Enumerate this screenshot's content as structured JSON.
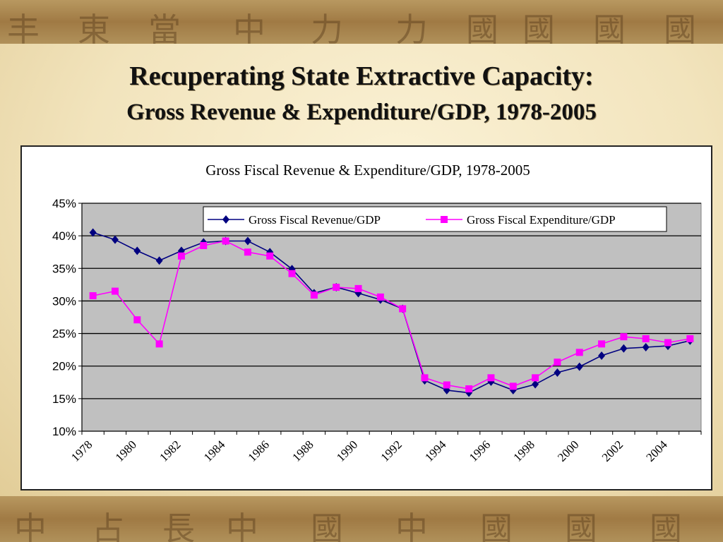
{
  "slide": {
    "title": "Recuperating State Extractive Capacity:",
    "subtitle": "Gross Revenue & Expenditure/GDP, 1978-2005"
  },
  "colors": {
    "plot_background": "#c0c0c0",
    "revenue": "#000080",
    "expenditure": "#ff00ff",
    "gridline": "#000000"
  },
  "chart_data": {
    "type": "line",
    "title": "Gross Fiscal Revenue & Expenditure/GDP, 1978-2005",
    "xlabel": "",
    "ylabel": "",
    "ylim": [
      10,
      45
    ],
    "yticks": [
      "10%",
      "15%",
      "20%",
      "25%",
      "30%",
      "35%",
      "40%",
      "45%"
    ],
    "ytick_values": [
      10,
      15,
      20,
      25,
      30,
      35,
      40,
      45
    ],
    "x": [
      1978,
      1979,
      1980,
      1981,
      1982,
      1983,
      1984,
      1985,
      1986,
      1987,
      1988,
      1989,
      1990,
      1991,
      1992,
      1993,
      1994,
      1995,
      1996,
      1997,
      1998,
      1999,
      2000,
      2001,
      2002,
      2003,
      2004,
      2005
    ],
    "xtick_labels": [
      "1978",
      "1980",
      "1982",
      "1984",
      "1986",
      "1988",
      "1990",
      "1992",
      "1994",
      "1996",
      "1998",
      "2000",
      "2002",
      "2004"
    ],
    "grid": true,
    "legend_position": "top-right",
    "series": [
      {
        "name": "Gross Fiscal Revenue/GDP",
        "marker": "diamond",
        "color": "#000080",
        "values": [
          40.5,
          39.4,
          37.7,
          36.2,
          37.7,
          39.0,
          39.2,
          39.2,
          37.5,
          34.9,
          31.2,
          32.1,
          31.2,
          30.2,
          28.8,
          17.8,
          16.3,
          15.9,
          17.6,
          16.3,
          17.2,
          19.0,
          19.9,
          21.6,
          22.7,
          22.9,
          23.1,
          23.9
        ]
      },
      {
        "name": "Gross Fiscal Expenditure/GDP",
        "marker": "square",
        "color": "#ff00ff",
        "values": [
          30.8,
          31.5,
          27.1,
          23.4,
          36.9,
          38.5,
          39.2,
          37.5,
          36.9,
          34.2,
          30.9,
          32.1,
          31.9,
          30.6,
          28.8,
          18.2,
          17.1,
          16.5,
          18.2,
          16.9,
          18.2,
          20.6,
          22.1,
          23.4,
          24.5,
          24.2,
          23.6,
          24.2
        ]
      }
    ]
  }
}
